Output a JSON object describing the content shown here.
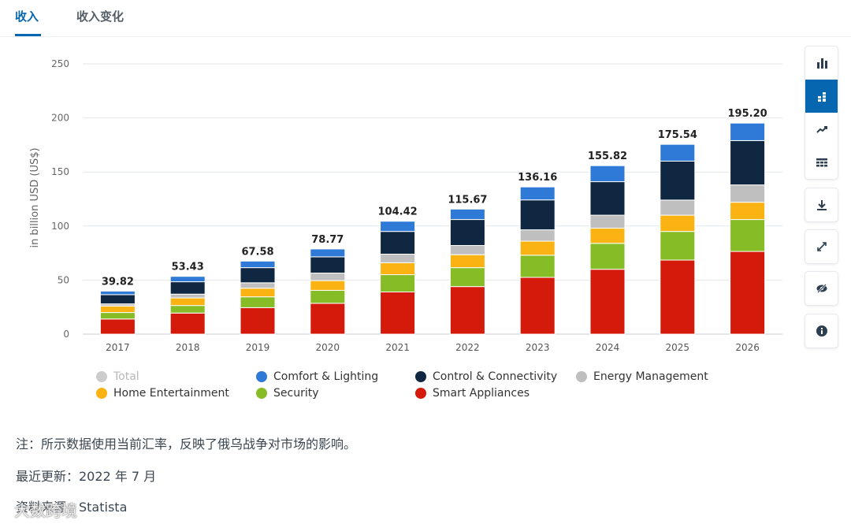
{
  "tabs": [
    {
      "label": "收入",
      "active": true
    },
    {
      "label": "收入变化",
      "active": false
    }
  ],
  "chart_data": {
    "type": "bar",
    "stacked": true,
    "title": "",
    "xlabel": "",
    "ylabel": "in billion USD (US$)",
    "ylim": [
      0,
      250
    ],
    "yticks": [
      0,
      50,
      100,
      150,
      200,
      250
    ],
    "grid": true,
    "legend_position": "bottom-left",
    "categories": [
      "2017",
      "2018",
      "2019",
      "2020",
      "2021",
      "2022",
      "2023",
      "2024",
      "2025",
      "2026"
    ],
    "totals": [
      39.82,
      53.43,
      67.58,
      78.77,
      104.42,
      115.67,
      136.16,
      155.82,
      175.54,
      195.2
    ],
    "total_labels": [
      "39.82",
      "53.43",
      "67.58",
      "78.77",
      "104.42",
      "115.67",
      "136.16",
      "155.82",
      "175.54",
      "195.20"
    ],
    "series": [
      {
        "name": "Smart Appliances",
        "color": "#d41a0a",
        "values": [
          14,
          19.5,
          24.5,
          28.5,
          39,
          44,
          52.5,
          60,
          68.5,
          76.5
        ]
      },
      {
        "name": "Security",
        "color": "#86bc25",
        "values": [
          6,
          7,
          10,
          12,
          16,
          17.5,
          20.5,
          24,
          26.5,
          29.5
        ]
      },
      {
        "name": "Home Entertainment",
        "color": "#fbb313",
        "values": [
          6,
          7,
          8,
          9,
          11,
          12,
          13,
          14,
          15,
          16
        ]
      },
      {
        "name": "Energy Management",
        "color": "#bfbfbf",
        "values": [
          2,
          3.5,
          5,
          7,
          8,
          8.5,
          10.5,
          12,
          14,
          16
        ]
      },
      {
        "name": "Control & Connectivity",
        "color": "#0f2741",
        "values": [
          8.5,
          11.43,
          14,
          15,
          21,
          24,
          27.66,
          31,
          36,
          41
        ]
      },
      {
        "name": "Comfort & Lighting",
        "color": "#2e7ad6",
        "values": [
          3.32,
          5,
          6.08,
          7.27,
          9.42,
          9.67,
          12,
          14.82,
          15.54,
          16.2
        ]
      }
    ]
  },
  "legend": {
    "items": [
      {
        "label": "Total",
        "color": "#cccccc",
        "dim": true
      },
      {
        "label": "Comfort & Lighting",
        "color": "#2e7ad6",
        "dim": false
      },
      {
        "label": "Control & Connectivity",
        "color": "#0f2741",
        "dim": false
      },
      {
        "label": "Energy Management",
        "color": "#bfbfbf",
        "dim": false
      },
      {
        "label": "Home Entertainment",
        "color": "#fbb313",
        "dim": false
      },
      {
        "label": "Security",
        "color": "#86bc25",
        "dim": false
      },
      {
        "label": "Smart Appliances",
        "color": "#d41a0a",
        "dim": false
      }
    ]
  },
  "sidebar": {
    "icons": [
      "bar-chart-icon",
      "stacked-bar-icon",
      "trend-line-icon",
      "table-icon",
      "download-icon",
      "fullscreen-icon",
      "hide-icon",
      "info-icon"
    ],
    "active": "stacked-bar-icon",
    "accent": "#0666b0"
  },
  "notes": {
    "note": "注：所示数据使用当前汇率，反映了俄乌战争对市场的影响。",
    "updated": "最近更新：2022 年 7 月",
    "source": "资料来源：Statista"
  },
  "watermark": "大数跨境"
}
